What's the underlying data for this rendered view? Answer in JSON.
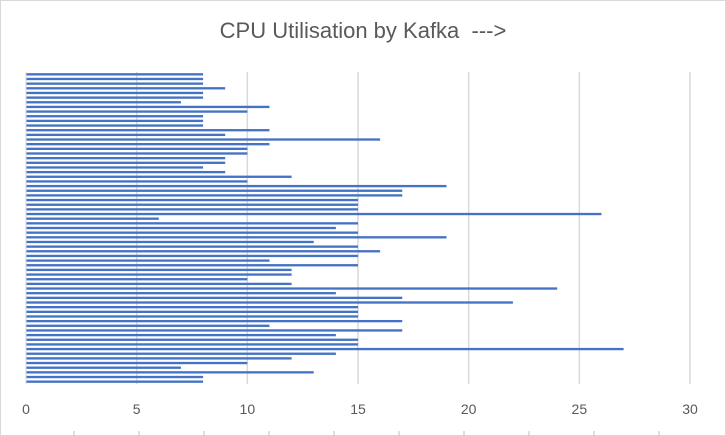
{
  "chart_data": {
    "type": "bar",
    "orientation": "horizontal",
    "title": "CPU Utilisation by Kafka  --->",
    "xlabel": "",
    "ylabel": "",
    "xlim": [
      0,
      30
    ],
    "x_ticks": [
      "0",
      "5",
      "10",
      "15",
      "20",
      "25",
      "30"
    ],
    "grid": "vertical",
    "legend": "none",
    "bar_color": "#4472c4",
    "grid_color": "#d9d9d9",
    "values": [
      8,
      8,
      8,
      9,
      8,
      8,
      7,
      11,
      10,
      8,
      8,
      8,
      11,
      9,
      16,
      11,
      10,
      10,
      9,
      9,
      8,
      9,
      12,
      10,
      19,
      17,
      17,
      15,
      15,
      15,
      26,
      6,
      15,
      14,
      15,
      19,
      13,
      15,
      16,
      15,
      11,
      15,
      12,
      12,
      10,
      12,
      24,
      14,
      17,
      22,
      15,
      15,
      15,
      17,
      11,
      17,
      14,
      15,
      15,
      27,
      14,
      12,
      10,
      7,
      13,
      8,
      8
    ]
  }
}
